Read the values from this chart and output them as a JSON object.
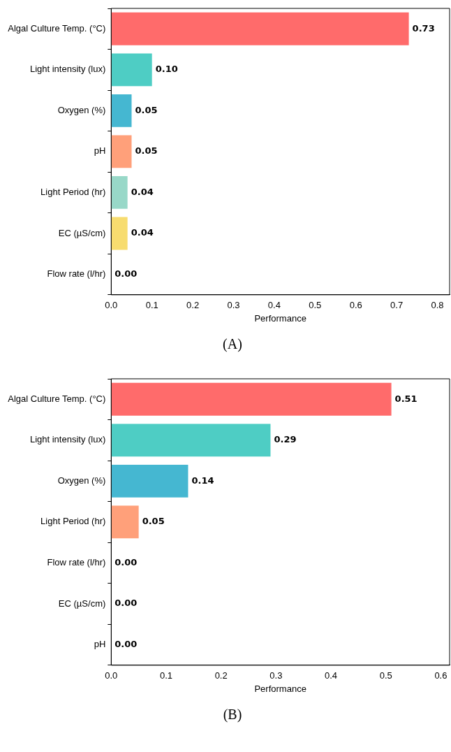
{
  "chart_data": [
    {
      "type": "bar",
      "orientation": "horizontal",
      "xlabel": "Performance",
      "annotations": [
        "(A)"
      ],
      "categories": [
        "Algal Culture Temp. (°C)",
        "Light intensity (lux)",
        "Oxygen (%)",
        "pH",
        "Light Period (hr)",
        "EC (µS/cm)",
        "Flow rate (l/hr)"
      ],
      "values": [
        0.73,
        0.1,
        0.05,
        0.05,
        0.04,
        0.04,
        0.0
      ],
      "value_labels": [
        "0.73",
        "0.10",
        "0.05",
        "0.05",
        "0.04",
        "0.04",
        "0.00"
      ],
      "colors": [
        "#ff6b6b",
        "#4ecdc4",
        "#45b7d1",
        "#ffa07a",
        "#98d8c8",
        "#f7dc6f",
        "#bb8fce"
      ],
      "xlim": [
        0,
        0.83
      ],
      "xticks": [
        {
          "value": 0,
          "label": "0.0"
        },
        {
          "value": 0.1,
          "label": "0.1"
        },
        {
          "value": 0.2,
          "label": "0.2"
        },
        {
          "value": 0.3,
          "label": "0.3"
        },
        {
          "value": 0.4,
          "label": "0.4"
        },
        {
          "value": 0.5,
          "label": "0.5"
        },
        {
          "value": 0.6,
          "label": "0.6"
        },
        {
          "value": 0.7,
          "label": "0.7"
        },
        {
          "value": 0.8,
          "label": "0.8"
        }
      ],
      "grid": false,
      "legend": false
    },
    {
      "type": "bar",
      "orientation": "horizontal",
      "xlabel": "Performance",
      "annotations": [
        "(B)"
      ],
      "categories": [
        "Algal Culture Temp. (°C)",
        "Light intensity (lux)",
        "Oxygen (%)",
        "Light Period (hr)",
        "Flow rate (l/hr)",
        "EC (µS/cm)",
        "pH"
      ],
      "values": [
        0.51,
        0.29,
        0.14,
        0.05,
        0.0,
        0.0,
        0.0
      ],
      "value_labels": [
        "0.51",
        "0.29",
        "0.14",
        "0.05",
        "0.00",
        "0.00",
        "0.00"
      ],
      "colors": [
        "#ff6b6b",
        "#4ecdc4",
        "#45b7d1",
        "#ffa07a",
        "#98d8c8",
        "#f7dc6f",
        "#bb8fce"
      ],
      "xlim": [
        0,
        0.616
      ],
      "xticks": [
        {
          "value": 0,
          "label": "0.0"
        },
        {
          "value": 0.1,
          "label": "0.1"
        },
        {
          "value": 0.2,
          "label": "0.2"
        },
        {
          "value": 0.3,
          "label": "0.3"
        },
        {
          "value": 0.4,
          "label": "0.4"
        },
        {
          "value": 0.5,
          "label": "0.5"
        },
        {
          "value": 0.6,
          "label": "0.6"
        }
      ],
      "grid": false,
      "legend": false
    }
  ]
}
